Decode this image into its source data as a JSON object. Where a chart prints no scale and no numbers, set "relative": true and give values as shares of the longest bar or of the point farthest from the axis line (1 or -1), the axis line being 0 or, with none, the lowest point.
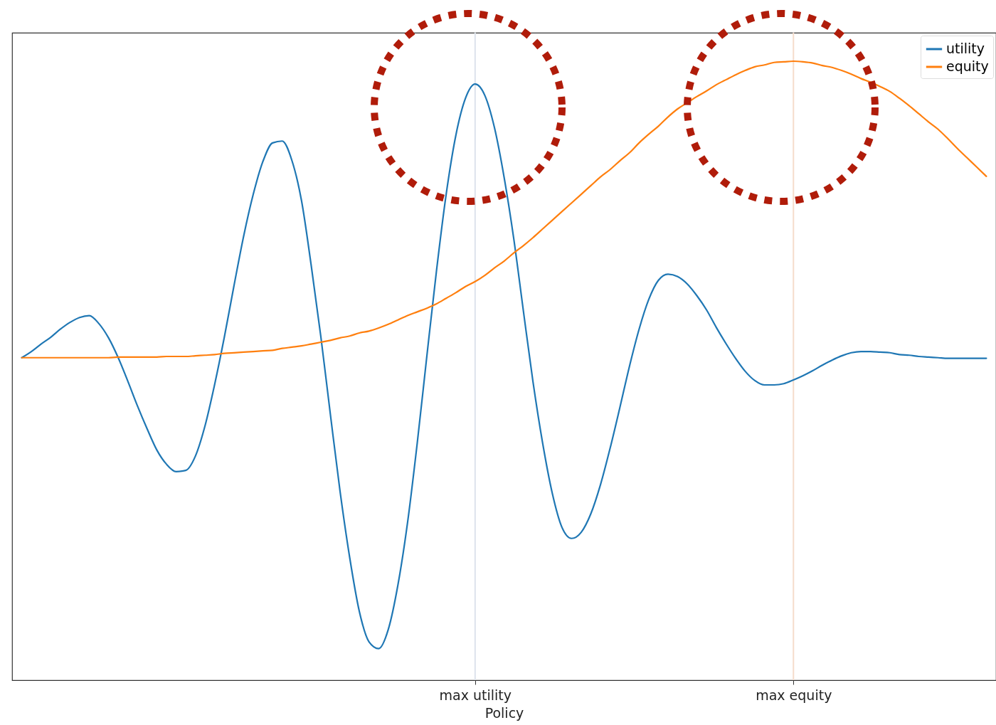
{
  "chart_data": {
    "type": "line",
    "xlabel": "Policy",
    "relative": true,
    "legend": "top right",
    "grid": false,
    "categories": [
      null,
      null,
      null,
      null,
      null,
      null,
      null,
      null,
      null,
      null,
      null,
      null,
      null,
      null,
      null,
      null,
      null,
      null,
      null,
      null,
      null,
      null,
      null,
      null,
      null,
      null,
      null,
      null,
      null,
      null,
      null,
      null,
      null,
      null,
      null,
      null,
      null,
      null,
      null,
      null,
      null,
      null,
      null,
      null,
      null,
      null,
      null,
      "max utility",
      null,
      null,
      null,
      null,
      null,
      null,
      null,
      null,
      null,
      null,
      null,
      null,
      null,
      null,
      null,
      null,
      null,
      null,
      null,
      null,
      null,
      null,
      null,
      null,
      null,
      null,
      null,
      null,
      null,
      null,
      null,
      null,
      "max equity",
      null,
      null,
      null,
      null,
      null,
      null,
      null,
      null,
      null,
      null,
      null,
      null,
      null,
      null,
      null,
      null,
      null,
      null,
      null,
      null
    ],
    "series": [
      {
        "name": "utility",
        "color": "#1f77b4",
        "values": [
          0.521,
          0.531,
          0.543,
          0.554,
          0.567,
          0.578,
          0.586,
          0.589,
          0.576,
          0.553,
          0.521,
          0.483,
          0.443,
          0.406,
          0.372,
          0.349,
          0.337,
          0.339,
          0.362,
          0.411,
          0.478,
          0.554,
          0.637,
          0.717,
          0.785,
          0.838,
          0.868,
          0.871,
          0.84,
          0.775,
          0.671,
          0.556,
          0.429,
          0.305,
          0.198,
          0.111,
          0.062,
          0.051,
          0.082,
          0.154,
          0.255,
          0.383,
          0.524,
          0.662,
          0.785,
          0.88,
          0.94,
          0.963,
          0.945,
          0.893,
          0.813,
          0.714,
          0.597,
          0.482,
          0.383,
          0.302,
          0.247,
          0.229,
          0.239,
          0.269,
          0.316,
          0.375,
          0.44,
          0.507,
          0.567,
          0.615,
          0.646,
          0.656,
          0.652,
          0.64,
          0.621,
          0.598,
          0.57,
          0.544,
          0.52,
          0.499,
          0.484,
          0.477,
          0.477,
          0.479,
          0.485,
          0.492,
          0.5,
          0.509,
          0.517,
          0.524,
          0.529,
          0.531,
          0.531,
          0.53,
          0.529,
          0.526,
          0.525,
          0.523,
          0.522,
          0.521,
          0.52,
          0.52,
          0.52,
          0.52,
          0.52
        ]
      },
      {
        "name": "equity",
        "color": "#ff7f0e",
        "values": [
          0.521,
          0.521,
          0.521,
          0.521,
          0.521,
          0.521,
          0.521,
          0.521,
          0.521,
          0.521,
          0.522,
          0.522,
          0.522,
          0.522,
          0.522,
          0.523,
          0.523,
          0.523,
          0.524,
          0.525,
          0.526,
          0.528,
          0.529,
          0.53,
          0.531,
          0.532,
          0.533,
          0.536,
          0.538,
          0.54,
          0.543,
          0.546,
          0.549,
          0.553,
          0.556,
          0.561,
          0.564,
          0.569,
          0.575,
          0.582,
          0.589,
          0.595,
          0.601,
          0.608,
          0.617,
          0.626,
          0.636,
          0.644,
          0.654,
          0.666,
          0.677,
          0.69,
          0.702,
          0.715,
          0.729,
          0.743,
          0.757,
          0.771,
          0.785,
          0.799,
          0.813,
          0.825,
          0.839,
          0.852,
          0.868,
          0.882,
          0.895,
          0.91,
          0.923,
          0.933,
          0.943,
          0.952,
          0.962,
          0.97,
          0.978,
          0.985,
          0.991,
          0.994,
          0.998,
          0.999,
          1.0,
          0.999,
          0.997,
          0.993,
          0.99,
          0.985,
          0.979,
          0.972,
          0.966,
          0.959,
          0.951,
          0.94,
          0.928,
          0.915,
          0.902,
          0.89,
          0.875,
          0.859,
          0.844,
          0.829,
          0.814
        ]
      }
    ],
    "ref_lines": [
      {
        "axis": "x",
        "value": "max utility",
        "color": "#dde3ec"
      },
      {
        "axis": "x",
        "value": "max equity",
        "color": "#f5dccb"
      }
    ]
  }
}
